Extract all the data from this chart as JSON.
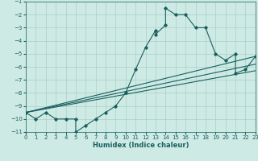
{
  "xlabel": "Humidex (Indice chaleur)",
  "xlim": [
    0,
    23
  ],
  "ylim": [
    -11,
    -1
  ],
  "xticks": [
    0,
    1,
    2,
    3,
    4,
    5,
    6,
    7,
    8,
    9,
    10,
    11,
    12,
    13,
    14,
    15,
    16,
    17,
    18,
    19,
    20,
    21,
    22,
    23
  ],
  "yticks": [
    -1,
    -2,
    -3,
    -4,
    -5,
    -6,
    -7,
    -8,
    -9,
    -10,
    -11
  ],
  "bg_color": "#ceeae4",
  "grid_color": "#aacfc8",
  "line_color": "#1a6060",
  "main_x": [
    0,
    1,
    2,
    3,
    4,
    5,
    5,
    6,
    7,
    8,
    9,
    10,
    11,
    12,
    13,
    13,
    14,
    14,
    15,
    16,
    17,
    18,
    19,
    20,
    21,
    21,
    22,
    23
  ],
  "main_y": [
    -9.5,
    -10,
    -9.5,
    -10,
    -10,
    -10,
    -11,
    -10.5,
    -10,
    -9.5,
    -9,
    -8,
    -6.2,
    -4.5,
    -3.2,
    -3.5,
    -2.8,
    -1.5,
    -2,
    -2,
    -3,
    -3,
    -5,
    -5.5,
    -5,
    -6.5,
    -6.2,
    -5.2
  ],
  "line1_x": [
    0,
    23
  ],
  "line1_y": [
    -9.5,
    -5.2
  ],
  "line2_x": [
    0,
    23
  ],
  "line2_y": [
    -9.5,
    -5.8
  ],
  "line3_x": [
    0,
    23
  ],
  "line3_y": [
    -9.5,
    -6.3
  ],
  "xlabel_fontsize": 6,
  "tick_fontsize": 5
}
